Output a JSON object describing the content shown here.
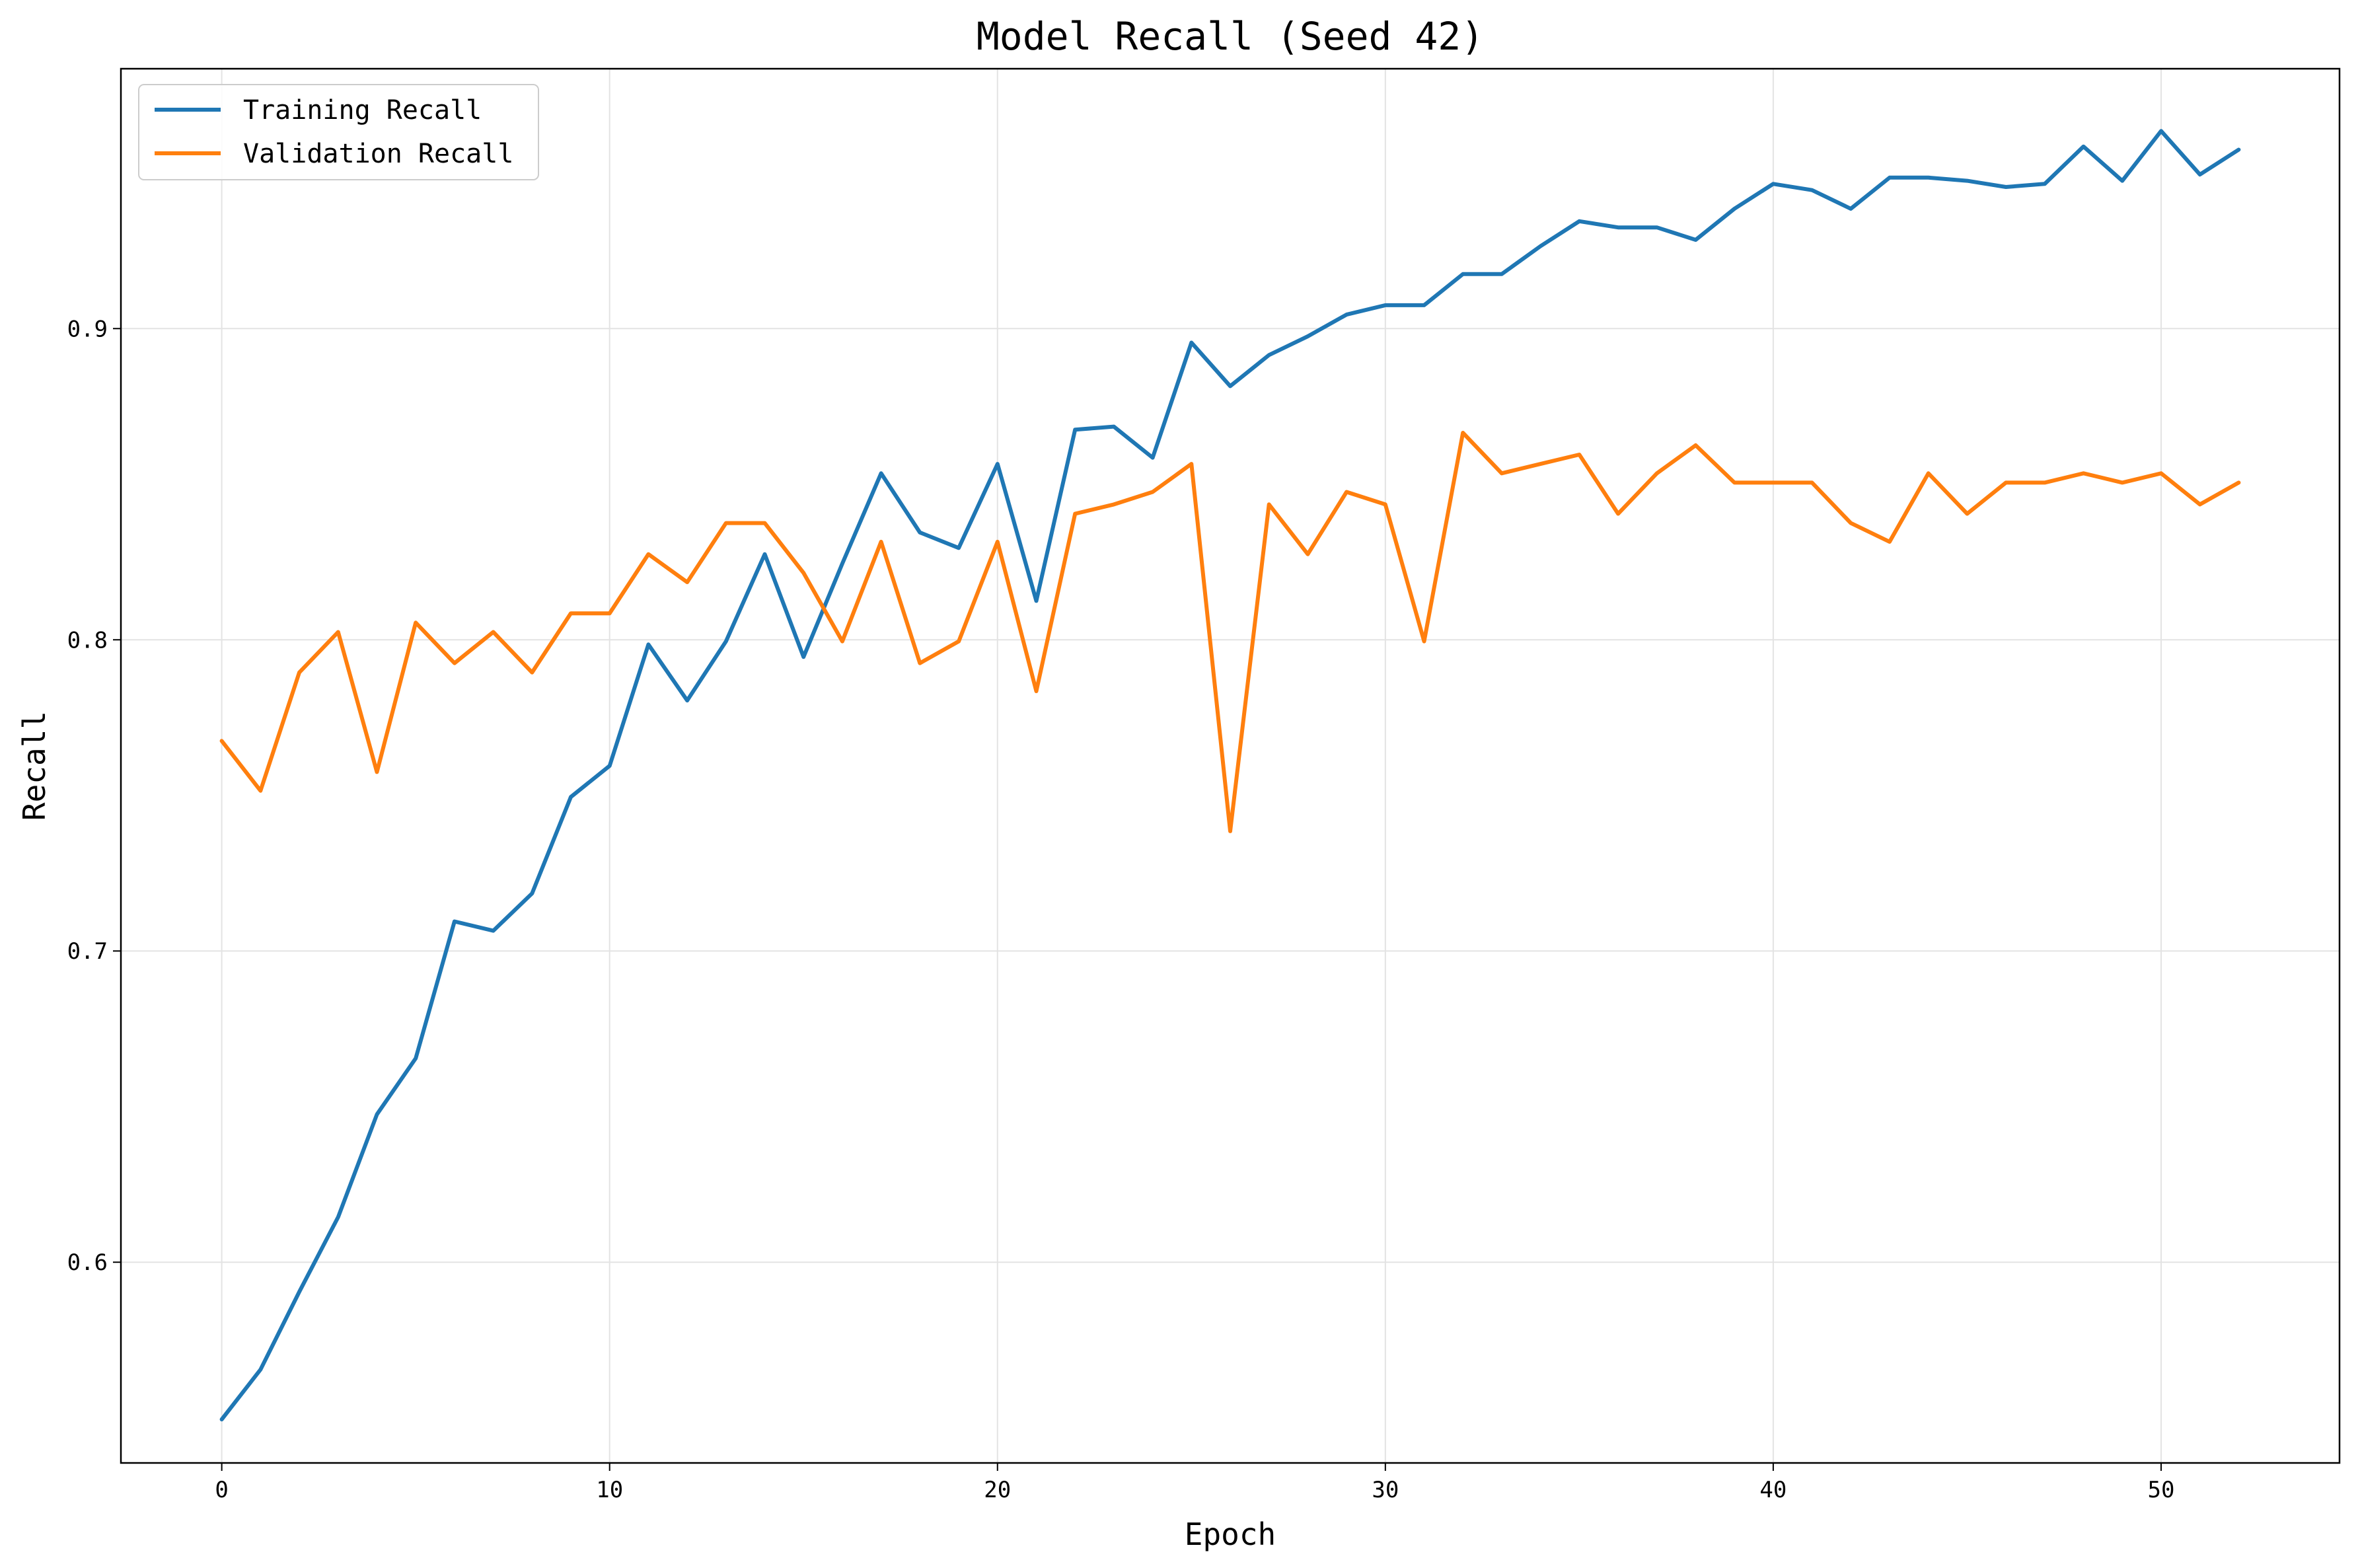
{
  "chart_data": {
    "type": "line",
    "title": "Model Recall (Seed 42)",
    "xlabel": "Epoch",
    "ylabel": "Recall",
    "xlim": [
      -2.6,
      54.6
    ],
    "ylim": [
      0.5355,
      0.9835
    ],
    "xticks": [
      0,
      10,
      20,
      30,
      40,
      50
    ],
    "yticks": [
      0.6,
      0.7,
      0.8,
      0.9
    ],
    "xtick_labels": [
      "0",
      "10",
      "20",
      "30",
      "40",
      "50"
    ],
    "ytick_labels": [
      "0.6",
      "0.7",
      "0.8",
      "0.9"
    ],
    "grid": true,
    "legend_position": "top-left",
    "x": [
      0,
      1,
      2,
      3,
      4,
      5,
      6,
      7,
      8,
      9,
      10,
      11,
      12,
      13,
      14,
      15,
      16,
      17,
      18,
      19,
      20,
      21,
      22,
      23,
      24,
      25,
      26,
      27,
      28,
      29,
      30,
      31,
      32,
      33,
      34,
      35,
      36,
      37,
      38,
      39,
      40,
      41,
      42,
      43,
      44,
      45,
      46,
      47,
      48,
      49,
      50,
      51,
      52
    ],
    "series": [
      {
        "name": "Training Recall",
        "color": "#1f77b4",
        "values": [
          0.5495,
          0.5655,
          0.5905,
          0.6145,
          0.6475,
          0.6655,
          0.7095,
          0.7065,
          0.7185,
          0.7495,
          0.7595,
          0.7985,
          0.7805,
          0.7995,
          0.8275,
          0.7945,
          0.8245,
          0.8535,
          0.8345,
          0.8295,
          0.8565,
          0.8125,
          0.8675,
          0.8685,
          0.8585,
          0.8955,
          0.8815,
          0.8915,
          0.8975,
          0.9045,
          0.9075,
          0.9075,
          0.9175,
          0.9175,
          0.9265,
          0.9345,
          0.9325,
          0.9325,
          0.9285,
          0.9385,
          0.9465,
          0.9445,
          0.9385,
          0.9485,
          0.9485,
          0.9475,
          0.9455,
          0.9465,
          0.9585,
          0.9475,
          0.9635,
          0.9495,
          0.9575
        ]
      },
      {
        "name": "Validation Recall",
        "color": "#ff7f0e",
        "values": [
          0.7675,
          0.7515,
          0.7895,
          0.8025,
          0.7575,
          0.8055,
          0.7925,
          0.8025,
          0.7895,
          0.8085,
          0.8085,
          0.8275,
          0.8185,
          0.8375,
          0.8375,
          0.8215,
          0.7995,
          0.8315,
          0.7925,
          0.7995,
          0.8315,
          0.7835,
          0.8405,
          0.8435,
          0.8475,
          0.8565,
          0.7385,
          0.8435,
          0.8275,
          0.8475,
          0.8435,
          0.7995,
          0.8665,
          0.8535,
          0.8565,
          0.8595,
          0.8405,
          0.8535,
          0.8625,
          0.8505,
          0.8505,
          0.8505,
          0.8375,
          0.8315,
          0.8535,
          0.8405,
          0.8505,
          0.8505,
          0.8535,
          0.8505,
          0.8535,
          0.8435,
          0.8505
        ]
      }
    ]
  }
}
